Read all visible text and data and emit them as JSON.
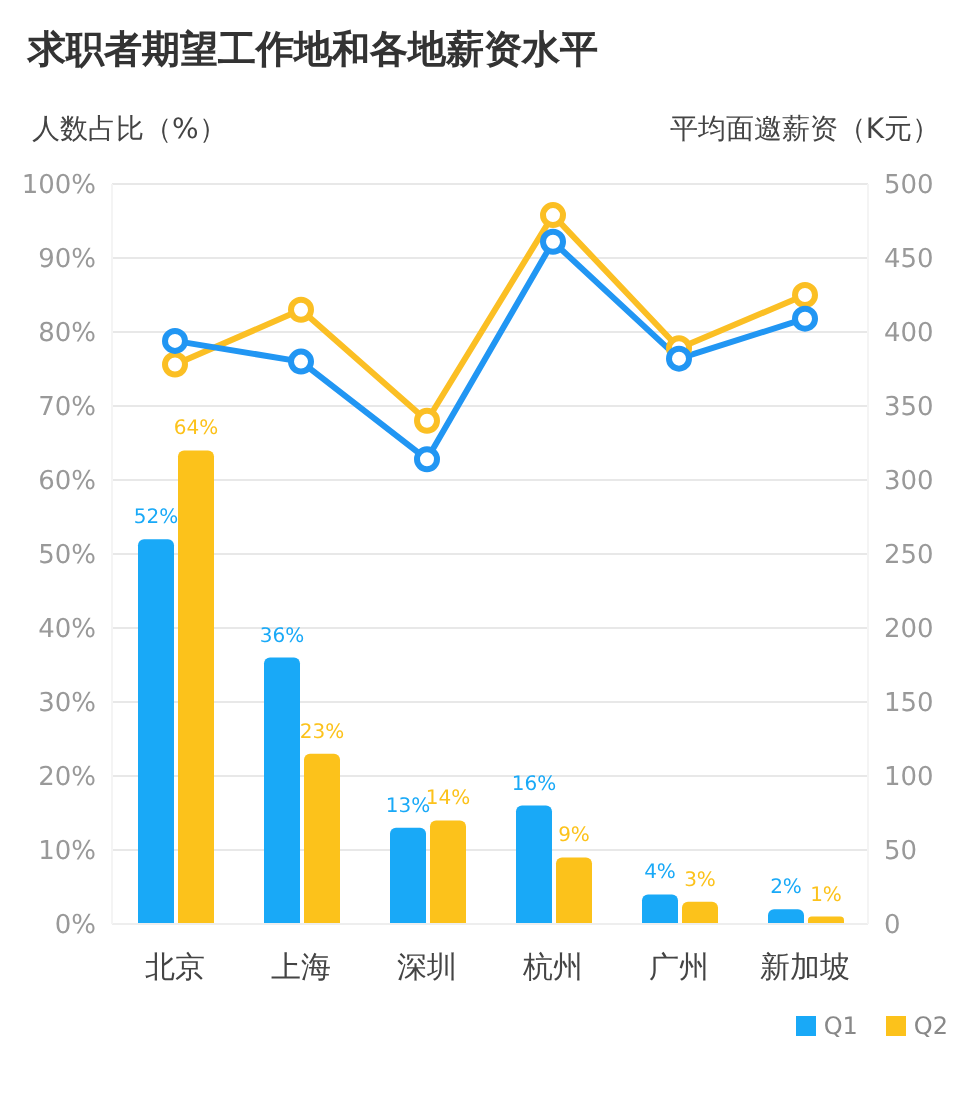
{
  "chart_data": {
    "type": "bar",
    "title": "求职者期望工作地和各地薪资水平",
    "ylabel": "人数占比（%）",
    "y2label": "平均面邀薪资（K元）",
    "categories": [
      "北京",
      "上海",
      "深圳",
      "杭州",
      "广州",
      "新加坡"
    ],
    "series": [
      {
        "name": "Q1",
        "color": "#19a9f7",
        "values": [
          52,
          36,
          13,
          16,
          4,
          2
        ],
        "value_labels": [
          "52%",
          "36%",
          "13%",
          "16%",
          "4%",
          "2%"
        ]
      },
      {
        "name": "Q2",
        "color": "#fcc21b",
        "values": [
          64,
          23,
          14,
          9,
          3,
          1
        ],
        "value_labels": [
          "64%",
          "23%",
          "14%",
          "9%",
          "3%",
          "1%"
        ]
      },
      {
        "type": "line",
        "axis": "y2",
        "color": "#2196f3",
        "values": [
          394,
          380,
          314,
          461,
          382,
          409
        ]
      },
      {
        "type": "line",
        "axis": "y2",
        "color": "#fbbf24",
        "values": [
          378,
          415,
          340,
          479,
          389,
          425
        ]
      }
    ],
    "ylim": [
      0,
      100
    ],
    "yticks": [
      {
        "value": 0,
        "label": "0%"
      },
      {
        "value": 10,
        "label": "10%"
      },
      {
        "value": 20,
        "label": "20%"
      },
      {
        "value": 30,
        "label": "30%"
      },
      {
        "value": 40,
        "label": "40%"
      },
      {
        "value": 50,
        "label": "50%"
      },
      {
        "value": 60,
        "label": "60%"
      },
      {
        "value": 70,
        "label": "70%"
      },
      {
        "value": 80,
        "label": "80%"
      },
      {
        "value": 90,
        "label": "90%"
      },
      {
        "value": 100,
        "label": "100%"
      }
    ],
    "y2lim": [
      0,
      500
    ],
    "y2ticks": [
      0,
      50,
      100,
      150,
      200,
      250,
      300,
      350,
      400,
      450,
      500
    ],
    "grid": "y",
    "legend": "bottom right",
    "marker": "circle",
    "line_style": "solid"
  }
}
